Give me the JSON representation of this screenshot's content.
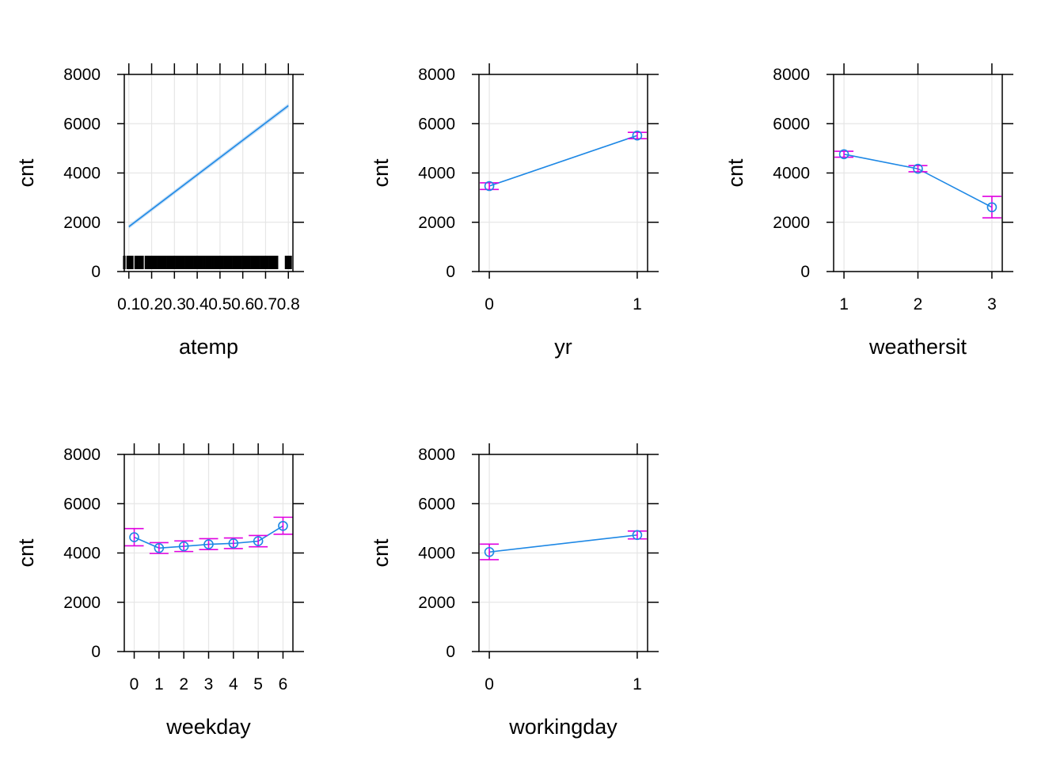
{
  "colors": {
    "line": "#1E88E5",
    "band": "#9CC9F2",
    "errorbar": "#E000E0",
    "grid": "#E6E6E6",
    "axis": "#000000",
    "rug": "#000000"
  },
  "chart_data": [
    {
      "type": "line",
      "xlabel": "atemp",
      "ylabel": "cnt",
      "xlim": [
        0.08,
        0.82
      ],
      "ylim": [
        0,
        8000
      ],
      "xticks": [
        0.1,
        0.2,
        0.3,
        0.4,
        0.5,
        0.6,
        0.7,
        0.8
      ],
      "xtick_labels": [
        "0.1",
        "0.2",
        "0.3",
        "0.4",
        "0.5",
        "0.6",
        "0.7",
        "0.8"
      ],
      "yticks": [
        0,
        2000,
        4000,
        6000,
        8000
      ],
      "ytick_labels": [
        "0",
        "2000",
        "4000",
        "6000",
        "8000"
      ],
      "grid": true,
      "x": [
        0.1,
        0.8
      ],
      "y": [
        1820,
        6730
      ],
      "y_lower": [
        1740,
        6640
      ],
      "y_upper": [
        1900,
        6820
      ],
      "rug": [
        0.08,
        0.095,
        0.105,
        0.115,
        0.13,
        0.14,
        0.15,
        0.16,
        0.175,
        0.185,
        0.19,
        0.2,
        0.21,
        0.22,
        0.23,
        0.24,
        0.25,
        0.26,
        0.27,
        0.28,
        0.29,
        0.3,
        0.31,
        0.32,
        0.33,
        0.34,
        0.35,
        0.36,
        0.37,
        0.38,
        0.39,
        0.4,
        0.41,
        0.42,
        0.43,
        0.44,
        0.45,
        0.46,
        0.47,
        0.48,
        0.49,
        0.5,
        0.51,
        0.52,
        0.53,
        0.54,
        0.55,
        0.56,
        0.57,
        0.58,
        0.59,
        0.6,
        0.61,
        0.62,
        0.63,
        0.64,
        0.65,
        0.66,
        0.67,
        0.68,
        0.69,
        0.7,
        0.71,
        0.72,
        0.73,
        0.74,
        0.75,
        0.79,
        0.8,
        0.81
      ]
    },
    {
      "type": "line",
      "xlabel": "yr",
      "ylabel": "cnt",
      "xlim": [
        -0.07,
        1.07
      ],
      "ylim": [
        0,
        8000
      ],
      "xticks": [
        0,
        1
      ],
      "xtick_labels": [
        "0",
        "1"
      ],
      "yticks": [
        0,
        2000,
        4000,
        6000,
        8000
      ],
      "ytick_labels": [
        "0",
        "2000",
        "4000",
        "6000",
        "8000"
      ],
      "grid": true,
      "x": [
        0,
        1
      ],
      "y": [
        3470,
        5520
      ],
      "y_lower": [
        3330,
        5390
      ],
      "y_upper": [
        3600,
        5650
      ]
    },
    {
      "type": "line",
      "xlabel": "weathersit",
      "ylabel": "cnt",
      "xlim": [
        0.86,
        3.14
      ],
      "ylim": [
        0,
        8000
      ],
      "xticks": [
        1,
        2,
        3
      ],
      "xtick_labels": [
        "1",
        "2",
        "3"
      ],
      "yticks": [
        0,
        2000,
        4000,
        6000,
        8000
      ],
      "ytick_labels": [
        "0",
        "2000",
        "4000",
        "6000",
        "8000"
      ],
      "grid": true,
      "x": [
        1,
        2,
        3
      ],
      "y": [
        4760,
        4170,
        2610
      ],
      "y_lower": [
        4640,
        4050,
        2180
      ],
      "y_upper": [
        4880,
        4300,
        3050
      ]
    },
    {
      "type": "line",
      "xlabel": "weekday",
      "ylabel": "cnt",
      "xlim": [
        -0.4,
        6.4
      ],
      "ylim": [
        0,
        8000
      ],
      "xticks": [
        0,
        1,
        2,
        3,
        4,
        5,
        6
      ],
      "xtick_labels": [
        "0",
        "1",
        "2",
        "3",
        "4",
        "5",
        "6"
      ],
      "yticks": [
        0,
        2000,
        4000,
        6000,
        8000
      ],
      "ytick_labels": [
        "0",
        "2000",
        "4000",
        "6000",
        "8000"
      ],
      "grid": true,
      "x": [
        0,
        1,
        2,
        3,
        4,
        5,
        6
      ],
      "y": [
        4640,
        4200,
        4270,
        4350,
        4390,
        4480,
        5100
      ],
      "y_lower": [
        4290,
        3980,
        4060,
        4140,
        4180,
        4250,
        4760
      ],
      "y_upper": [
        4990,
        4420,
        4490,
        4580,
        4610,
        4710,
        5450
      ]
    },
    {
      "type": "line",
      "xlabel": "workingday",
      "ylabel": "cnt",
      "xlim": [
        -0.07,
        1.07
      ],
      "ylim": [
        0,
        8000
      ],
      "xticks": [
        0,
        1
      ],
      "xtick_labels": [
        "0",
        "1"
      ],
      "yticks": [
        0,
        2000,
        4000,
        6000,
        8000
      ],
      "ytick_labels": [
        "0",
        "2000",
        "4000",
        "6000",
        "8000"
      ],
      "grid": true,
      "x": [
        0,
        1
      ],
      "y": [
        4040,
        4730
      ],
      "y_lower": [
        3730,
        4570
      ],
      "y_upper": [
        4360,
        4890
      ]
    }
  ]
}
